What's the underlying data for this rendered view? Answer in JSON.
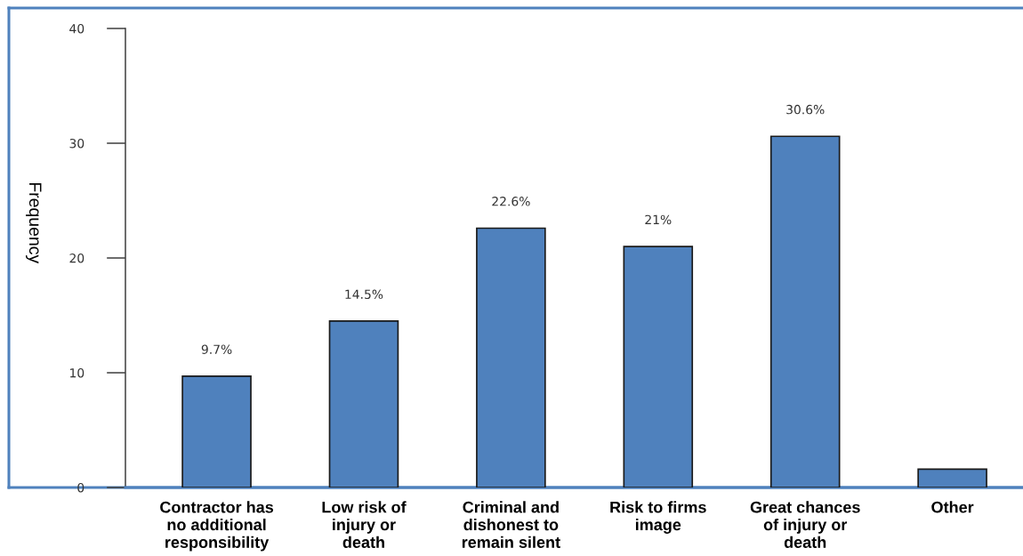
{
  "chart_data": {
    "type": "bar",
    "ylabel": "Frequency",
    "categories": [
      "Contractor has\nno additional\nresponsibility",
      "Low risk of\ninjury or\ndeath",
      "Criminal and\ndishonest to\nremain silent",
      "Risk to firms\nimage",
      "Great chances\nof injury or\ndeath",
      "Other"
    ],
    "values": [
      9.7,
      14.5,
      22.6,
      21,
      30.6,
      1.6
    ],
    "value_labels": [
      "9.7%",
      "14.5%",
      "22.6%",
      "21%",
      "30.6%",
      null
    ],
    "color": "#4f81bd",
    "ylim": [
      0,
      40
    ],
    "yticks": [
      0,
      10,
      20,
      30,
      40
    ],
    "grid": false
  }
}
